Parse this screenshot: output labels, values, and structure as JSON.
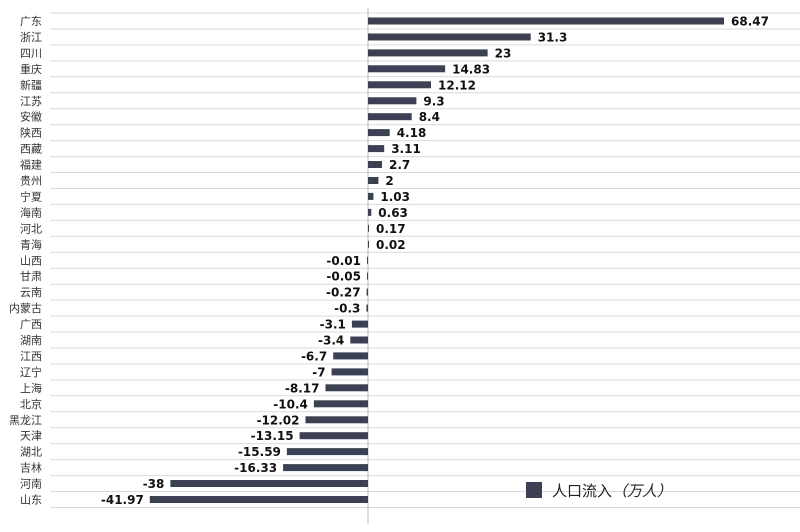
{
  "chart_data": {
    "type": "bar",
    "orientation": "horizontal",
    "categories": [
      "广东",
      "浙江",
      "四川",
      "重庆",
      "新疆",
      "江苏",
      "安徽",
      "陕西",
      "西藏",
      "福建",
      "贵州",
      "宁夏",
      "海南",
      "河北",
      "青海",
      "山西",
      "甘肃",
      "云南",
      "内蒙古",
      "广西",
      "湖南",
      "江西",
      "辽宁",
      "上海",
      "北京",
      "黑龙江",
      "天津",
      "湖北",
      "吉林",
      "河南",
      "山东"
    ],
    "value_labels": [
      "68.47",
      "31.3",
      "23",
      "14.83",
      "12.12",
      "9.3",
      "8.4",
      "4.18",
      "3.11",
      "2.7",
      "2",
      "1.03",
      "0.63",
      "0.17",
      "0.02",
      "-0.01",
      "-0.05",
      "-0.27",
      "-0.3",
      "-3.1",
      "-3.4",
      "-6.7",
      "-7",
      "-8.17",
      "-10.4",
      "-12.02",
      "-13.15",
      "-15.59",
      "-16.33",
      "-38",
      "-41.97"
    ],
    "series": [
      {
        "name": "人口流入（万人）",
        "values": [
          68.47,
          31.3,
          23,
          14.83,
          12.12,
          9.3,
          8.4,
          4.18,
          3.11,
          2.7,
          2,
          1.03,
          0.63,
          0.17,
          0.02,
          -0.01,
          -0.05,
          -0.27,
          -0.3,
          -3.1,
          -3.4,
          -6.7,
          -7,
          -8.17,
          -10.4,
          -12.02,
          -13.15,
          -15.59,
          -16.33,
          -38,
          -41.97
        ],
        "color": "#3b4152"
      }
    ],
    "legend": {
      "label": "人口流入",
      "unit_label": "（万人）",
      "position": "bottom-right"
    },
    "xlim": [
      -45,
      78
    ],
    "grid": true,
    "gridline_color": "#d9d9d9",
    "axis_color": "#bbbbbb"
  }
}
